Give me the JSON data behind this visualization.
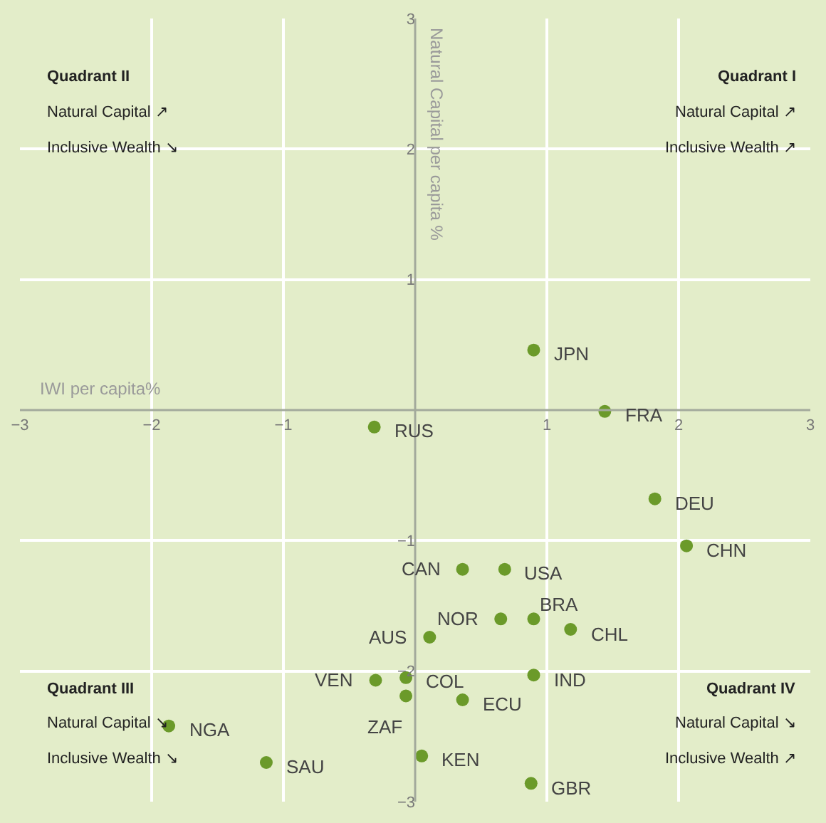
{
  "chart_data": {
    "type": "scatter",
    "xlabel": "IWI per capita%",
    "ylabel": "Natural Capital per capita %",
    "x": [
      0.9,
      1.44,
      -0.31,
      1.82,
      2.06,
      0.36,
      0.68,
      0.65,
      0.9,
      1.18,
      0.11,
      0.9,
      -0.3,
      -0.07,
      -0.07,
      0.36,
      -1.87,
      -1.13,
      0.05,
      0.88
    ],
    "values": [
      0.46,
      -0.01,
      -0.13,
      -0.68,
      -1.04,
      -1.22,
      -1.22,
      -1.6,
      -1.6,
      -1.68,
      -1.74,
      -2.03,
      -2.07,
      -2.05,
      -2.19,
      -2.22,
      -2.42,
      -2.7,
      -2.65,
      -2.86
    ],
    "color": "#6b9a2a",
    "marker": "circle",
    "xlim": [
      -3,
      3
    ],
    "ylim": [
      -3,
      3
    ],
    "xticks": [
      -3,
      -2,
      -1,
      1,
      2,
      3
    ],
    "yticks": [
      -3,
      -2,
      -1,
      1,
      2,
      3
    ],
    "grid": true,
    "annotations": [
      {
        "text": "JPN",
        "x": 0.9,
        "y": 0.46
      },
      {
        "text": "FRA",
        "x": 1.44,
        "y": -0.01
      },
      {
        "text": "RUS",
        "x": -0.31,
        "y": -0.13
      },
      {
        "text": "DEU",
        "x": 1.82,
        "y": -0.68
      },
      {
        "text": "CHN",
        "x": 2.06,
        "y": -1.04
      },
      {
        "text": "CAN",
        "x": 0.36,
        "y": -1.22
      },
      {
        "text": "USA",
        "x": 0.68,
        "y": -1.22
      },
      {
        "text": "NOR",
        "x": 0.65,
        "y": -1.6
      },
      {
        "text": "BRA",
        "x": 0.9,
        "y": -1.6
      },
      {
        "text": "CHL",
        "x": 1.18,
        "y": -1.68
      },
      {
        "text": "AUS",
        "x": 0.11,
        "y": -1.74
      },
      {
        "text": "IND",
        "x": 0.9,
        "y": -2.03
      },
      {
        "text": "VEN",
        "x": -0.3,
        "y": -2.07
      },
      {
        "text": "COL",
        "x": -0.07,
        "y": -2.05
      },
      {
        "text": "ZAF",
        "x": -0.07,
        "y": -2.19
      },
      {
        "text": "ECU",
        "x": 0.36,
        "y": -2.22
      },
      {
        "text": "NGA",
        "x": -1.87,
        "y": -2.42
      },
      {
        "text": "SAU",
        "x": -1.13,
        "y": -2.7
      },
      {
        "text": "KEN",
        "x": 0.05,
        "y": -2.65
      },
      {
        "text": "GBR",
        "x": 0.88,
        "y": -2.86
      },
      "Quadrant II",
      "Natural Capital ↗",
      "Inclusive Wealth ↘",
      "Quadrant I",
      "Natural Capital ↗",
      "Inclusive Wealth ↗",
      "Quadrant III",
      "Natural Capital ↘",
      "Inclusive Wealth ↘",
      "Quadrant IV",
      "Natural Capital ↘",
      "Inclusive Wealth ↗"
    ]
  }
}
